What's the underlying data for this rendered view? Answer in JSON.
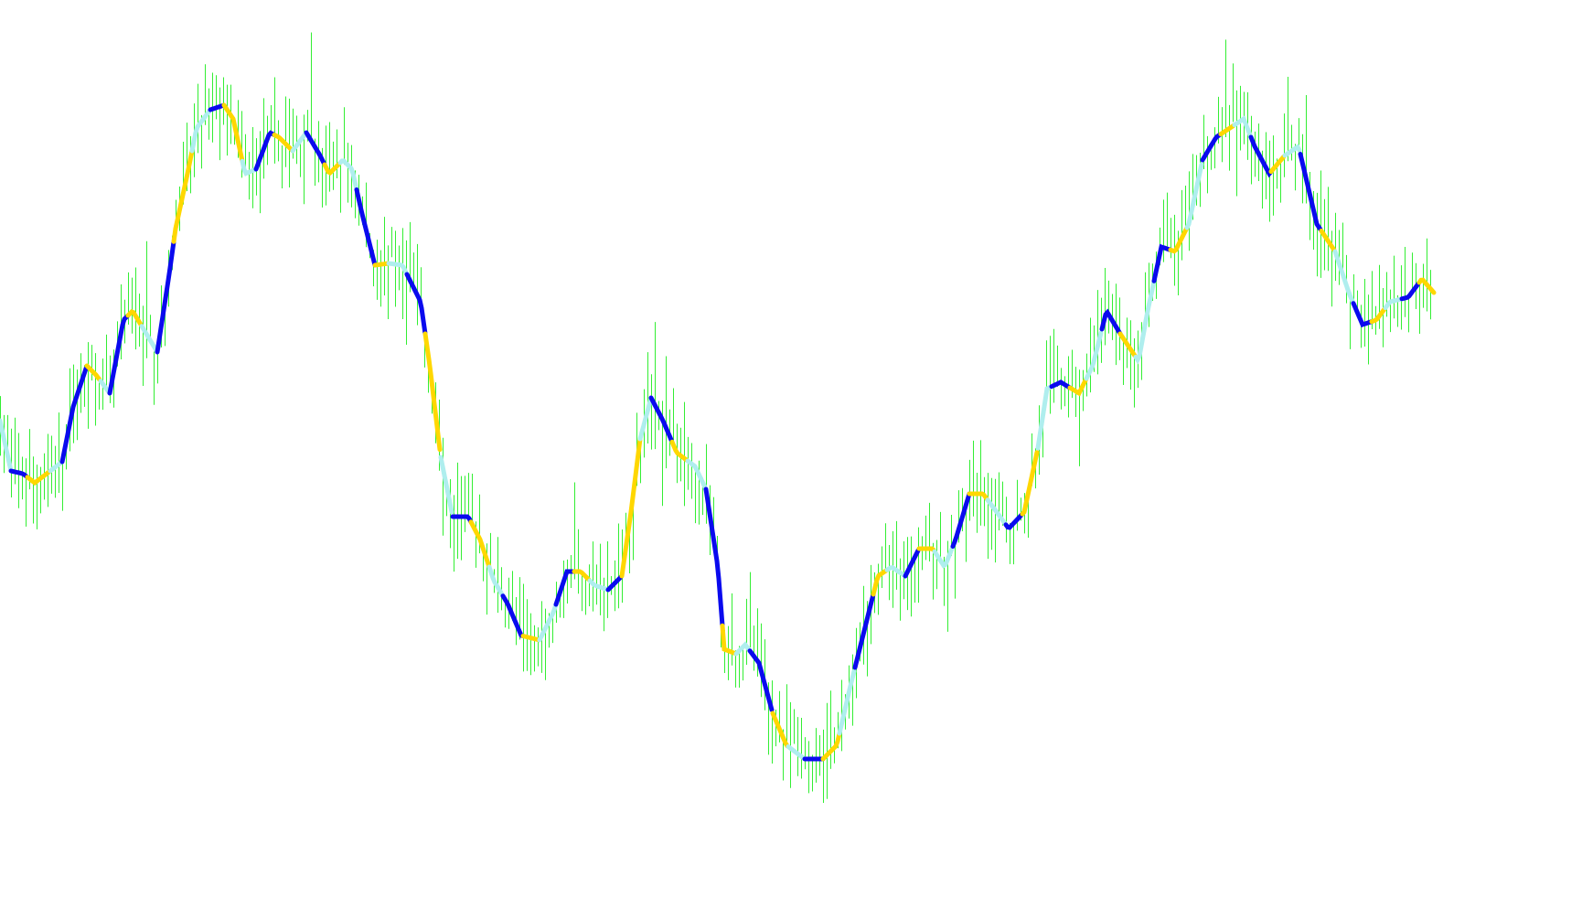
{
  "chart_data": {
    "type": "line",
    "title": "",
    "xlabel": "",
    "ylabel": "",
    "xlim": [
      0,
      392
    ],
    "ylim": [
      0,
      90
    ],
    "grid": false,
    "legend": "none",
    "colors": {
      "price_bars": "#33ee33",
      "state_a": "#0a0aee",
      "state_b": "#ffd700",
      "state_c": "#afeeee",
      "background": "#ffffff"
    },
    "price_bar_count": 392,
    "smoothed_line": [
      [
        0,
        44
      ],
      [
        3,
        38.5
      ],
      [
        6.25,
        38.2
      ],
      [
        9.5,
        37.2
      ],
      [
        13.75,
        38.5
      ],
      [
        17,
        39.5
      ],
      [
        20,
        45.5
      ],
      [
        23.75,
        50
      ],
      [
        26.25,
        49
      ],
      [
        30,
        47
      ],
      [
        33.75,
        55
      ],
      [
        36.25,
        56
      ],
      [
        40,
        53.5
      ],
      [
        43,
        51.5
      ],
      [
        46.25,
        60
      ],
      [
        48,
        65
      ],
      [
        51.25,
        71
      ],
      [
        53.75,
        76
      ],
      [
        57.5,
        78
      ],
      [
        61.25,
        78.5
      ],
      [
        63.75,
        77
      ],
      [
        67,
        71
      ],
      [
        70,
        71.5
      ],
      [
        73.75,
        75.5
      ],
      [
        76.25,
        75
      ],
      [
        80,
        73.5
      ],
      [
        83.75,
        75.5
      ],
      [
        87.5,
        73
      ],
      [
        90,
        71
      ],
      [
        93.75,
        72.5
      ],
      [
        96.25,
        71.5
      ],
      [
        98.75,
        67
      ],
      [
        102.5,
        61
      ],
      [
        106.25,
        61.2
      ],
      [
        110,
        61
      ],
      [
        115,
        57
      ],
      [
        117.5,
        50
      ],
      [
        120.5,
        40
      ],
      [
        123.75,
        33.5
      ],
      [
        128,
        33.5
      ],
      [
        131.25,
        31
      ],
      [
        135,
        26.5
      ],
      [
        138.75,
        24
      ],
      [
        142.5,
        20.5
      ],
      [
        147.5,
        20
      ],
      [
        151.25,
        23
      ],
      [
        155,
        27.5
      ],
      [
        158.75,
        27.5
      ],
      [
        162.5,
        26
      ],
      [
        166.25,
        25.5
      ],
      [
        170,
        27
      ],
      [
        172.5,
        34
      ],
      [
        175,
        42
      ],
      [
        178,
        46.5
      ],
      [
        181.25,
        44
      ],
      [
        185,
        40.5
      ],
      [
        190,
        39
      ],
      [
        193,
        36.5
      ],
      [
        196.25,
        28
      ],
      [
        198,
        19
      ],
      [
        201.25,
        18.5
      ],
      [
        203.75,
        19.5
      ],
      [
        207.5,
        17.5
      ],
      [
        211.25,
        12
      ],
      [
        215,
        8.5
      ],
      [
        220,
        7
      ],
      [
        225,
        7
      ],
      [
        228.75,
        8.5
      ],
      [
        232.5,
        15
      ],
      [
        236.25,
        21
      ],
      [
        240,
        27
      ],
      [
        243.75,
        28
      ],
      [
        247.5,
        27
      ],
      [
        251.25,
        30
      ],
      [
        255,
        30
      ],
      [
        258.25,
        28
      ],
      [
        261.25,
        31
      ],
      [
        265,
        36
      ],
      [
        268.75,
        36
      ],
      [
        272.5,
        34
      ],
      [
        275.75,
        32.2
      ],
      [
        280,
        34
      ],
      [
        283.75,
        41
      ],
      [
        286.25,
        47.5
      ],
      [
        290,
        48.2
      ],
      [
        295,
        47
      ],
      [
        298.75,
        50
      ],
      [
        302.5,
        56
      ],
      [
        306.25,
        53.5
      ],
      [
        311.25,
        50.5
      ],
      [
        313.75,
        56
      ],
      [
        317.5,
        63
      ],
      [
        321.25,
        62.5
      ],
      [
        325,
        65.5
      ],
      [
        328.75,
        72.5
      ],
      [
        332.5,
        75
      ],
      [
        336.25,
        76
      ],
      [
        340,
        77
      ],
      [
        343,
        74
      ],
      [
        347,
        71
      ],
      [
        351.25,
        73
      ],
      [
        355,
        74
      ],
      [
        360,
        65.5
      ],
      [
        365,
        62.5
      ],
      [
        368.75,
        58
      ],
      [
        372.5,
        54.5
      ],
      [
        376.25,
        55
      ],
      [
        380,
        57
      ],
      [
        385,
        57.5
      ],
      [
        388.75,
        59.5
      ],
      [
        392,
        58
      ]
    ],
    "line_segments": [
      [
        0,
        "state_c"
      ],
      [
        3,
        "state_a"
      ],
      [
        7.5,
        "state_b"
      ],
      [
        13.75,
        "state_c"
      ],
      [
        17,
        "state_a"
      ],
      [
        23.75,
        "state_b"
      ],
      [
        27.5,
        "state_c"
      ],
      [
        30,
        "state_a"
      ],
      [
        35,
        "state_b"
      ],
      [
        38.75,
        "state_c"
      ],
      [
        43,
        "state_a"
      ],
      [
        47.5,
        "state_b"
      ],
      [
        52.5,
        "state_c"
      ],
      [
        57.5,
        "state_a"
      ],
      [
        61.25,
        "state_b"
      ],
      [
        66.25,
        "state_c"
      ],
      [
        70,
        "state_a"
      ],
      [
        75,
        "state_b"
      ],
      [
        80,
        "state_c"
      ],
      [
        83.75,
        "state_a"
      ],
      [
        88.75,
        "state_b"
      ],
      [
        93,
        "state_c"
      ],
      [
        97.5,
        "state_a"
      ],
      [
        102.5,
        "state_b"
      ],
      [
        106.25,
        "state_c"
      ],
      [
        111.25,
        "state_a"
      ],
      [
        116.25,
        "state_b"
      ],
      [
        120.5,
        "state_c"
      ],
      [
        123.75,
        "state_a"
      ],
      [
        128.75,
        "state_b"
      ],
      [
        133.75,
        "state_c"
      ],
      [
        137.5,
        "state_a"
      ],
      [
        143,
        "state_b"
      ],
      [
        147.5,
        "state_c"
      ],
      [
        152,
        "state_a"
      ],
      [
        157,
        "state_b"
      ],
      [
        161.25,
        "state_c"
      ],
      [
        166.25,
        "state_a"
      ],
      [
        170,
        "state_b"
      ],
      [
        175,
        "state_c"
      ],
      [
        178,
        "state_a"
      ],
      [
        183.75,
        "state_b"
      ],
      [
        188,
        "state_c"
      ],
      [
        193,
        "state_a"
      ],
      [
        197.5,
        "state_b"
      ],
      [
        201.25,
        "state_c"
      ],
      [
        205,
        "state_a"
      ],
      [
        211.25,
        "state_b"
      ],
      [
        215.5,
        "state_c"
      ],
      [
        220,
        "state_a"
      ],
      [
        225,
        "state_b"
      ],
      [
        229.5,
        "state_c"
      ],
      [
        233.75,
        "state_a"
      ],
      [
        238.75,
        "state_b"
      ],
      [
        242.5,
        "state_c"
      ],
      [
        247.5,
        "state_a"
      ],
      [
        251.25,
        "state_b"
      ],
      [
        255.5,
        "state_c"
      ],
      [
        260.5,
        "state_a"
      ],
      [
        265,
        "state_b"
      ],
      [
        270,
        "state_c"
      ],
      [
        275,
        "state_a"
      ],
      [
        279.5,
        "state_b"
      ],
      [
        283.75,
        "state_c"
      ],
      [
        287.5,
        "state_a"
      ],
      [
        292.5,
        "state_b"
      ],
      [
        297,
        "state_c"
      ],
      [
        301.25,
        "state_a"
      ],
      [
        306.25,
        "state_b"
      ],
      [
        310.5,
        "state_c"
      ],
      [
        315.5,
        "state_a"
      ],
      [
        320,
        "state_b"
      ],
      [
        324.5,
        "state_c"
      ],
      [
        328.75,
        "state_a"
      ],
      [
        333.75,
        "state_b"
      ],
      [
        337.5,
        "state_c"
      ],
      [
        342,
        "state_a"
      ],
      [
        347.5,
        "state_b"
      ],
      [
        351.25,
        "state_c"
      ],
      [
        355.5,
        "state_a"
      ],
      [
        361.25,
        "state_b"
      ],
      [
        365,
        "state_c"
      ],
      [
        370,
        "state_a"
      ],
      [
        375,
        "state_b"
      ],
      [
        378.75,
        "state_c"
      ],
      [
        383.25,
        "state_a"
      ],
      [
        388,
        "state_b"
      ]
    ]
  }
}
